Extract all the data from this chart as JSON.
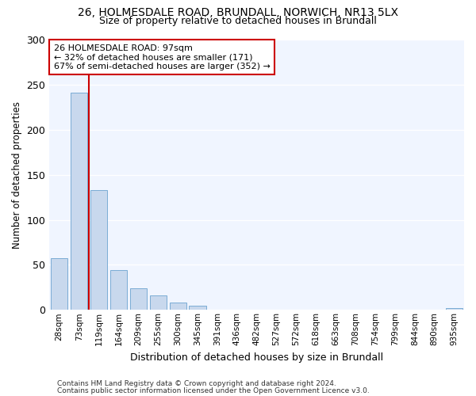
{
  "title_line1": "26, HOLMESDALE ROAD, BRUNDALL, NORWICH, NR13 5LX",
  "title_line2": "Size of property relative to detached houses in Brundall",
  "xlabel": "Distribution of detached houses by size in Brundall",
  "ylabel": "Number of detached properties",
  "bar_color": "#c8d8ed",
  "bar_edge_color": "#7aacd4",
  "categories": [
    "28sqm",
    "73sqm",
    "119sqm",
    "164sqm",
    "209sqm",
    "255sqm",
    "300sqm",
    "345sqm",
    "391sqm",
    "436sqm",
    "482sqm",
    "527sqm",
    "572sqm",
    "618sqm",
    "663sqm",
    "708sqm",
    "754sqm",
    "799sqm",
    "844sqm",
    "890sqm",
    "935sqm"
  ],
  "values": [
    57,
    241,
    133,
    44,
    24,
    16,
    8,
    5,
    0,
    0,
    0,
    0,
    0,
    0,
    0,
    0,
    0,
    0,
    0,
    0,
    2
  ],
  "red_line_x": 1.5,
  "annotation_text": "26 HOLMESDALE ROAD: 97sqm\n← 32% of detached houses are smaller (171)\n67% of semi-detached houses are larger (352) →",
  "annotation_box_color": "#ffffff",
  "annotation_border_color": "#cc0000",
  "red_line_color": "#cc0000",
  "ylim": [
    0,
    300
  ],
  "yticks": [
    0,
    50,
    100,
    150,
    200,
    250,
    300
  ],
  "background_color": "#ffffff",
  "plot_bg_color": "#f0f5ff",
  "grid_color": "#ffffff",
  "footer_line1": "Contains HM Land Registry data © Crown copyright and database right 2024.",
  "footer_line2": "Contains public sector information licensed under the Open Government Licence v3.0."
}
